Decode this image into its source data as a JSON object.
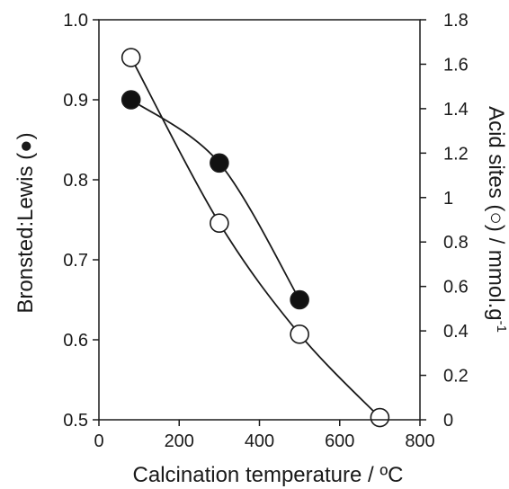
{
  "chart_data": {
    "type": "scatter",
    "title": "",
    "xlabel": "Calcination temperature / ºC",
    "ylabel_left": "Bronsted:Lewis (●)",
    "ylabel_right": "Acid sites  (○) / mmol.g",
    "ylabel_right_superscript": "-1",
    "xlim": [
      0,
      800
    ],
    "ylim_left": [
      0.5,
      1.0
    ],
    "ylim_right": [
      0,
      1.8
    ],
    "xticks": [
      "0",
      "200",
      "400",
      "600",
      "800"
    ],
    "yticks_left": [
      "0.5",
      "0.6",
      "0.7",
      "0.8",
      "0.9",
      "1.0"
    ],
    "yticks_right": [
      "0",
      "0.2",
      "0.4",
      "0.6",
      "0.8",
      "1",
      "1.2",
      "1.4",
      "1.6",
      "1.8"
    ],
    "grid": false,
    "series": [
      {
        "axis": "left",
        "marker": "filled-circle",
        "x": [
          80,
          300,
          500
        ],
        "y": [
          0.9,
          0.821,
          0.65
        ]
      },
      {
        "axis": "right",
        "marker": "open-circle",
        "x": [
          80,
          300,
          500,
          700
        ],
        "y": [
          1.63,
          0.885,
          0.385,
          0.01
        ]
      }
    ]
  }
}
